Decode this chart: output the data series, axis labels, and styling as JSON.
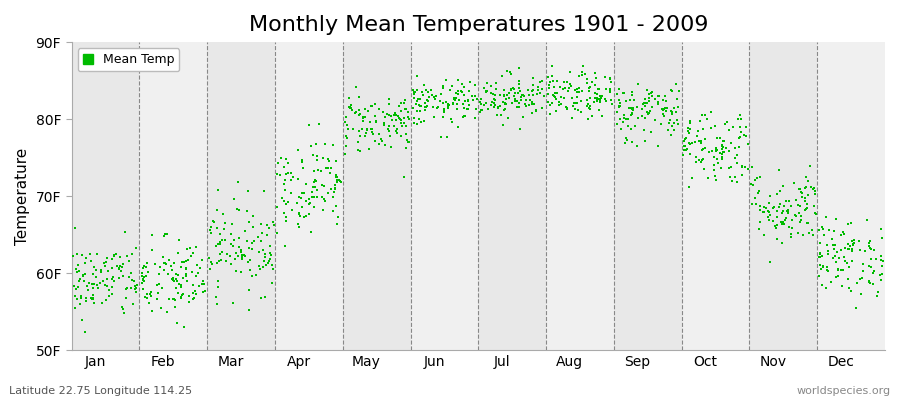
{
  "title": "Monthly Mean Temperatures 1901 - 2009",
  "ylabel": "Temperature",
  "ylim": [
    50,
    90
  ],
  "yticks": [
    50,
    60,
    70,
    80,
    90
  ],
  "ytick_labels": [
    "50F",
    "60F",
    "70F",
    "80F",
    "90F"
  ],
  "months": [
    "Jan",
    "Feb",
    "Mar",
    "Apr",
    "May",
    "Jun",
    "Jul",
    "Aug",
    "Sep",
    "Oct",
    "Nov",
    "Dec"
  ],
  "xlim": [
    0,
    12
  ],
  "dot_color": "#00bb00",
  "background_color_even": "#e8e8e8",
  "background_color_odd": "#f0f0f0",
  "title_fontsize": 16,
  "axis_label_fontsize": 11,
  "tick_label_fontsize": 10,
  "legend_label": "Mean Temp",
  "bottom_left_text": "Latitude 22.75 Longitude 114.25",
  "bottom_right_text": "worldspecies.org",
  "mean_temps_F": [
    59.0,
    59.0,
    63.5,
    71.5,
    79.5,
    82.0,
    83.0,
    83.0,
    81.0,
    76.5,
    68.5,
    62.0
  ],
  "spread": [
    2.5,
    2.8,
    3.0,
    3.0,
    2.0,
    1.5,
    1.5,
    1.5,
    2.0,
    2.5,
    2.5,
    2.5
  ],
  "n_years": 109
}
